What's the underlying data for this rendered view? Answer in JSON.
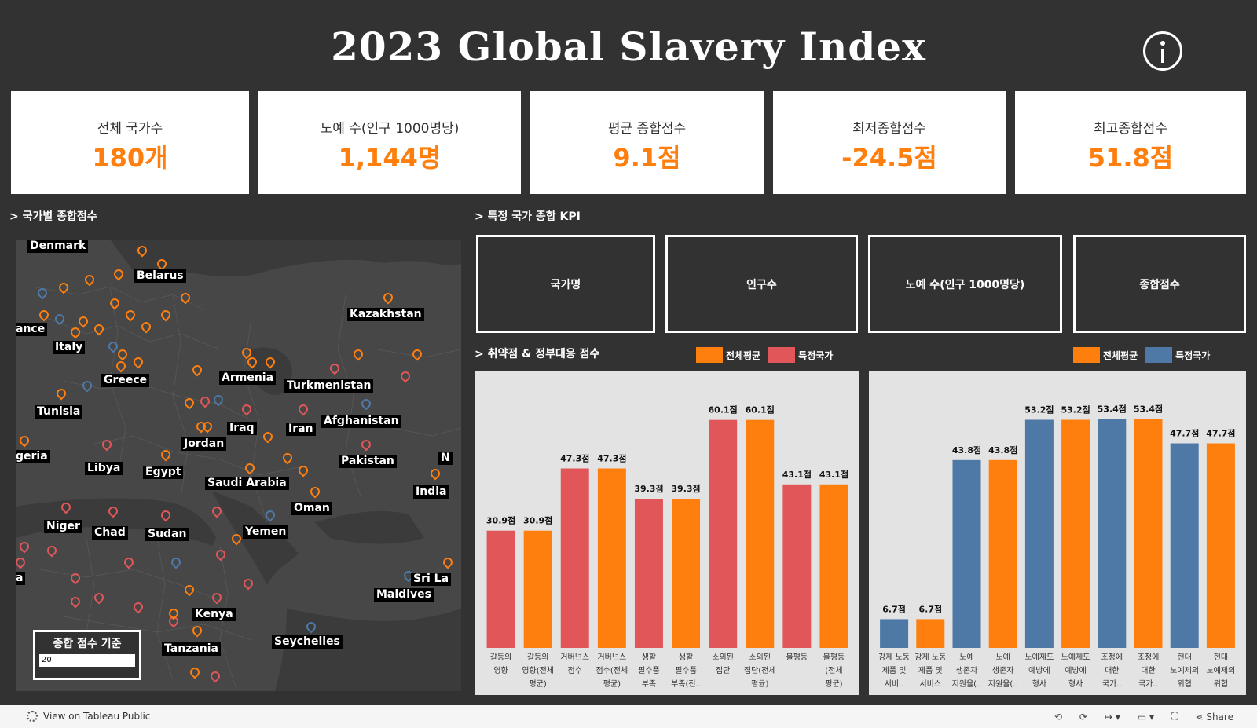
{
  "title": "2023  Global  Slavery  Index",
  "kpis": [
    {
      "label": "전체 국가수",
      "value": "180개"
    },
    {
      "label": "노예 수(인구 1000명당)",
      "value": "1,144명"
    },
    {
      "label": "평균 종합점수",
      "value": "9.1점"
    },
    {
      "label": "최저종합점수",
      "value": "-24.5점"
    },
    {
      "label": "최고종합점수",
      "value": "51.8점"
    }
  ],
  "sections": {
    "map": "> 국가별 종합점수",
    "kpi": "> 특정 국가 종합 KPI",
    "vuln": "> 취약점 & 정부대응 점수"
  },
  "country_kpi_boxes": [
    "국가명",
    "인구수",
    "노예 수(인구 1000명당)",
    "종합점수"
  ],
  "map_labels": [
    "Denmark",
    "Belarus",
    "Kazakhstan",
    "ance",
    "Italy",
    "Greece",
    "Armenia",
    "Turkmenistan",
    "Tunisia",
    "Iraq",
    "Iran",
    "Afghanistan",
    "geria",
    "Jordan",
    "Libya",
    "Egypt",
    "Pakistan",
    "N",
    "Saudi Arabia",
    "India",
    "Oman",
    "Niger",
    "Chad",
    "Sudan",
    "Yemen",
    "a",
    "Sri La",
    "Maldives",
    "Kenya",
    "Seychelles",
    "Tanzania"
  ],
  "map_legend": {
    "title": "종합 점수 기준",
    "value": "20"
  },
  "colors": {
    "overall": "#ff7f0e",
    "country_red": "#e15759",
    "country_blue": "#4e79a7"
  },
  "chart_data": [
    {
      "type": "bar",
      "legend": [
        "전체평균",
        "특정국가"
      ],
      "categories": [
        "갈등의 영향",
        "갈등의 영향(전체 평균)",
        "거버넌스 점수",
        "거버넌스 점수(전체 평균)",
        "생활 필수품 부족",
        "생활 필수품 부족(전..",
        "소외된 집단",
        "소외된 집단(전체 평균)",
        "불평등",
        "불평등 (전체 평균)"
      ],
      "values": [
        30.9,
        30.9,
        47.3,
        47.3,
        39.3,
        39.3,
        60.1,
        60.1,
        43.1,
        43.1
      ],
      "value_labels": [
        "30.9점",
        "30.9점",
        "47.3점",
        "47.3점",
        "39.3점",
        "39.3점",
        "60.1점",
        "60.1점",
        "43.1점",
        "43.1점"
      ],
      "series_type": [
        "특정국가",
        "전체평균",
        "특정국가",
        "전체평균",
        "특정국가",
        "전체평균",
        "특정국가",
        "전체평균",
        "특정국가",
        "전체평균"
      ],
      "ylim": [
        0,
        65
      ]
    },
    {
      "type": "bar",
      "legend": [
        "전체평균",
        "특정국가"
      ],
      "categories": [
        "강제 노동 제품 및 서비..",
        "강제 노동 제품 및 서비스 ..",
        "노예 생존자 지원율(..",
        "노예 생존자 지원율(..",
        "노예제도 예방에 형사 사..",
        "노예제도 예방에 형사 사..",
        "조정에 대한 국가..",
        "조정에 대한 국가..",
        "현대 노예제의 위협 요..",
        "현대 노예제의 위협 요.."
      ],
      "values": [
        6.7,
        6.7,
        43.8,
        43.8,
        53.2,
        53.2,
        53.4,
        53.4,
        47.7,
        47.7
      ],
      "value_labels": [
        "6.7점",
        "6.7점",
        "43.8점",
        "43.8점",
        "53.2점",
        "53.2점",
        "53.4점",
        "53.4점",
        "47.7점",
        "47.7점"
      ],
      "series_type": [
        "특정국가",
        "전체평균",
        "특정국가",
        "전체평균",
        "특정국가",
        "전체평균",
        "특정국가",
        "전체평균",
        "특정국가",
        "전체평균"
      ],
      "ylim": [
        0,
        57.5
      ]
    }
  ],
  "footer": {
    "view_label": "View on Tableau Public",
    "share_label": "Share"
  }
}
